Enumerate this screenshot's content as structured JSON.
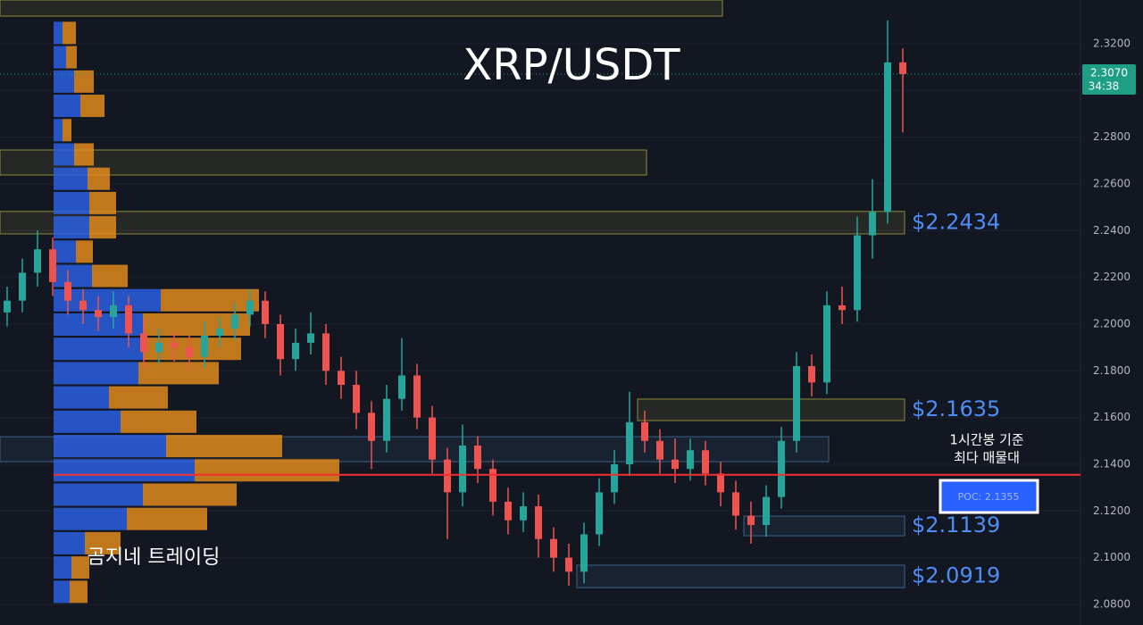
{
  "chart_data": {
    "type": "candlestick",
    "title": "XRP/USDT",
    "watermark": "곰지네 트레이딩",
    "ylim": [
      2.0712,
      2.3387
    ],
    "yticks": [
      {
        "value": 2.08,
        "label": "2.0800"
      },
      {
        "value": 2.1,
        "label": "2.1000"
      },
      {
        "value": 2.12,
        "label": "2.1200"
      },
      {
        "value": 2.14,
        "label": "2.1400"
      },
      {
        "value": 2.16,
        "label": "2.1600"
      },
      {
        "value": 2.18,
        "label": "2.1800"
      },
      {
        "value": 2.2,
        "label": "2.2000"
      },
      {
        "value": 2.22,
        "label": "2.2200"
      },
      {
        "value": 2.24,
        "label": "2.2400"
      },
      {
        "value": 2.26,
        "label": "2.2600"
      },
      {
        "value": 2.28,
        "label": "2.2800"
      },
      {
        "value": 2.3,
        "label": "2.3000"
      },
      {
        "value": 2.32,
        "label": "2.3200"
      }
    ],
    "up_color": "#26a69a",
    "down_color": "#ef5350",
    "open": [
      2.205,
      2.21,
      2.222,
      2.232,
      2.218,
      2.21,
      2.206,
      2.203,
      2.208,
      2.196,
      2.188,
      2.192,
      2.19,
      2.186,
      2.195,
      2.198,
      2.204,
      2.21,
      2.2,
      2.185,
      2.192,
      2.196,
      2.18,
      2.174,
      2.162,
      2.15,
      2.168,
      2.178,
      2.16,
      2.142,
      2.128,
      2.148,
      2.138,
      2.124,
      2.116,
      2.122,
      2.108,
      2.1,
      2.094,
      2.11,
      2.128,
      2.14,
      2.158,
      2.15,
      2.142,
      2.138,
      2.146,
      2.136,
      2.128,
      2.118,
      2.114,
      2.126,
      2.15,
      2.182,
      2.175,
      2.208,
      2.206,
      2.238,
      2.248,
      2.312
    ],
    "high": [
      2.216,
      2.228,
      2.24,
      2.237,
      2.223,
      2.215,
      2.212,
      2.214,
      2.212,
      2.202,
      2.198,
      2.197,
      2.195,
      2.201,
      2.203,
      2.209,
      2.215,
      2.214,
      2.204,
      2.198,
      2.205,
      2.2,
      2.186,
      2.18,
      2.167,
      2.174,
      2.194,
      2.183,
      2.165,
      2.147,
      2.157,
      2.152,
      2.142,
      2.13,
      2.128,
      2.127,
      2.113,
      2.106,
      2.115,
      2.134,
      2.146,
      2.171,
      2.163,
      2.155,
      2.151,
      2.151,
      2.15,
      2.141,
      2.133,
      2.124,
      2.131,
      2.156,
      2.188,
      2.187,
      2.214,
      2.216,
      2.246,
      2.262,
      2.33,
      2.318
    ],
    "low": [
      2.199,
      2.205,
      2.216,
      2.212,
      2.204,
      2.2,
      2.197,
      2.198,
      2.19,
      2.182,
      2.183,
      2.184,
      2.18,
      2.181,
      2.19,
      2.193,
      2.199,
      2.194,
      2.178,
      2.18,
      2.187,
      2.174,
      2.168,
      2.155,
      2.138,
      2.145,
      2.163,
      2.155,
      2.136,
      2.108,
      2.122,
      2.132,
      2.118,
      2.11,
      2.111,
      2.1,
      2.094,
      2.088,
      2.089,
      2.105,
      2.123,
      2.135,
      2.145,
      2.136,
      2.132,
      2.133,
      2.131,
      2.122,
      2.112,
      2.106,
      2.109,
      2.121,
      2.145,
      2.169,
      2.17,
      2.2,
      2.201,
      2.228,
      2.243,
      2.282
    ],
    "close": [
      2.21,
      2.222,
      2.232,
      2.218,
      2.21,
      2.206,
      2.203,
      2.208,
      2.196,
      2.188,
      2.192,
      2.19,
      2.186,
      2.195,
      2.198,
      2.204,
      2.21,
      2.2,
      2.185,
      2.192,
      2.196,
      2.18,
      2.174,
      2.162,
      2.15,
      2.168,
      2.178,
      2.16,
      2.142,
      2.128,
      2.148,
      2.138,
      2.124,
      2.116,
      2.122,
      2.108,
      2.1,
      2.094,
      2.11,
      2.128,
      2.14,
      2.158,
      2.15,
      2.142,
      2.138,
      2.146,
      2.136,
      2.128,
      2.118,
      2.114,
      2.126,
      2.15,
      2.182,
      2.175,
      2.208,
      2.206,
      2.238,
      2.248,
      2.312,
      2.307
    ],
    "profile": {
      "prices": [
        2.3246,
        2.3142,
        2.3038,
        2.2934,
        2.283,
        2.2726,
        2.2622,
        2.2518,
        2.2414,
        2.231,
        2.2206,
        2.2102,
        2.1998,
        2.1894,
        2.179,
        2.1686,
        2.1582,
        2.1478,
        2.1374,
        2.127,
        2.1166,
        2.1062,
        2.0958,
        2.0854
      ],
      "buy": [
        10,
        14,
        23,
        30,
        10,
        23,
        38,
        40,
        40,
        25,
        43,
        120,
        100,
        100,
        95,
        62,
        75,
        126,
        158,
        100,
        82,
        35,
        20,
        18
      ],
      "sell": [
        15,
        12,
        22,
        27,
        10,
        22,
        25,
        30,
        30,
        19,
        40,
        110,
        120,
        110,
        90,
        66,
        85,
        130,
        162,
        105,
        90,
        40,
        20,
        20
      ],
      "buy_color": "#2b5fe0",
      "sell_color": "#e0891c"
    },
    "zones": [
      {
        "range": [
          2.3318,
          2.3387
        ],
        "from": 0,
        "to": 47,
        "color": "#8c8c3c"
      },
      {
        "range": [
          2.2638,
          2.2745
        ],
        "from": 0,
        "to": 42,
        "color": "#8c8c3c"
      },
      {
        "range": [
          2.2386,
          2.2482
        ],
        "from": 0,
        "to": 59,
        "color": "#8c8c3c",
        "label": "$2.2434"
      },
      {
        "range": [
          2.1587,
          2.1679
        ],
        "from": 42,
        "to": 59,
        "color": "#8c8c3c",
        "label": "$2.1635"
      },
      {
        "range": [
          2.1411,
          2.1518
        ],
        "from": 0,
        "to": 54,
        "color": "#3f6488"
      },
      {
        "range": [
          2.1094,
          2.1178
        ],
        "from": 49,
        "to": 59,
        "color": "#3f6488",
        "label": "$2.1139"
      },
      {
        "range": [
          2.0872,
          2.0968
        ],
        "from": 38,
        "to": 59,
        "color": "#3f6488",
        "label": "$2.0919"
      }
    ],
    "poc": {
      "value": 2.1355,
      "label": "POC: 2.1355",
      "note": [
        "1시간봉 기준",
        "최다 매물대"
      ],
      "color": "#f23030"
    },
    "price_tag": {
      "value": 2.307,
      "label": "2.3070",
      "timer": "34:38",
      "color": "#1e9e84"
    }
  }
}
